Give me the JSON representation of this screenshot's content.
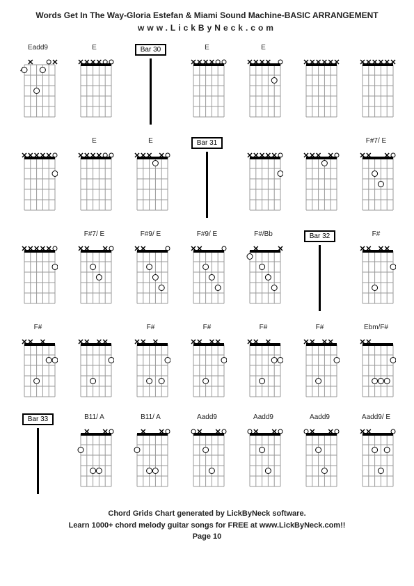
{
  "title": "Words Get In The Way-Gloria Estefan & Miami Sound Machine-BASIC ARRANGEMENT",
  "subtitle": "www.LickByNeck.com",
  "footer": {
    "line1": "Chord Grids Chart generated by LickByNeck software.",
    "line2": "Learn 1000+ chord melody guitar songs for FREE at www.LickByNeck.com!!",
    "line3": "Page 10"
  },
  "diagram": {
    "width": 56,
    "height": 95,
    "fret_count": 5,
    "string_count": 6,
    "grid_color": "#999999",
    "nut_color": "#000000",
    "finger_color": "#ffffff",
    "finger_stroke": "#000000",
    "mute_color": "#000000",
    "open_color": "#000000"
  },
  "cells": [
    {
      "type": "chord",
      "label": "Eadd9",
      "startFret": 4,
      "mutes": [
        0,
        4
      ],
      "opens": [
        1
      ],
      "fingers": [
        [
          2,
          1
        ],
        [
          3,
          3
        ],
        [
          5,
          1
        ]
      ]
    },
    {
      "type": "chord",
      "label": "E",
      "mutes": [
        2,
        3,
        4,
        5
      ],
      "opens": [
        0,
        1
      ],
      "fingers": []
    },
    {
      "type": "bar",
      "label": "Bar 30"
    },
    {
      "type": "chord",
      "label": "E",
      "mutes": [
        2,
        3,
        4,
        5
      ],
      "opens": [
        0,
        1
      ],
      "fingers": []
    },
    {
      "type": "chord",
      "label": "E",
      "mutes": [
        2,
        3,
        4,
        5
      ],
      "opens": [
        0
      ],
      "fingers": [
        [
          1,
          2
        ]
      ]
    },
    {
      "type": "chord",
      "label": "",
      "mutes": [
        0,
        1,
        2,
        3,
        4,
        5
      ],
      "opens": [],
      "fingers": []
    },
    {
      "type": "chord",
      "label": "",
      "mutes": [
        0,
        1,
        2,
        3,
        4,
        5
      ],
      "opens": [],
      "fingers": []
    },
    {
      "type": "chord",
      "label": "",
      "mutes": [
        1,
        2,
        3,
        4,
        5
      ],
      "opens": [
        0
      ],
      "fingers": [
        [
          0,
          2
        ]
      ]
    },
    {
      "type": "chord",
      "label": "E",
      "mutes": [
        2,
        3,
        4,
        5
      ],
      "opens": [
        0,
        1
      ],
      "fingers": []
    },
    {
      "type": "chord",
      "label": "E",
      "mutes": [
        1,
        3,
        4,
        5
      ],
      "opens": [
        0
      ],
      "fingers": [
        [
          2,
          1
        ]
      ]
    },
    {
      "type": "bar",
      "label": "Bar 31"
    },
    {
      "type": "chord",
      "label": "",
      "mutes": [
        1,
        2,
        3,
        4,
        5
      ],
      "opens": [
        0
      ],
      "fingers": [
        [
          0,
          2
        ]
      ]
    },
    {
      "type": "chord",
      "label": "",
      "mutes": [
        1,
        3,
        4,
        5
      ],
      "opens": [
        0
      ],
      "fingers": [
        [
          2,
          1
        ]
      ]
    },
    {
      "type": "chord",
      "label": "F#7/ E",
      "mutes": [
        1,
        4,
        5
      ],
      "opens": [
        0
      ],
      "fingers": [
        [
          2,
          3
        ],
        [
          3,
          2
        ]
      ]
    },
    {
      "type": "chord",
      "label": "",
      "mutes": [
        1,
        2,
        3,
        4,
        5
      ],
      "opens": [
        0
      ],
      "fingers": [
        [
          0,
          2
        ]
      ]
    },
    {
      "type": "chord",
      "label": "F#7/ E",
      "mutes": [
        1,
        4,
        5
      ],
      "opens": [
        0
      ],
      "fingers": [
        [
          2,
          3
        ],
        [
          3,
          2
        ]
      ]
    },
    {
      "type": "chord",
      "label": "F#9/ E",
      "mutes": [
        4,
        5
      ],
      "opens": [
        0
      ],
      "fingers": [
        [
          1,
          4
        ],
        [
          2,
          3
        ],
        [
          3,
          2
        ]
      ]
    },
    {
      "type": "chord",
      "label": "F#9/ E",
      "mutes": [
        4,
        5
      ],
      "opens": [
        0
      ],
      "fingers": [
        [
          1,
          4
        ],
        [
          2,
          3
        ],
        [
          3,
          2
        ]
      ]
    },
    {
      "type": "chord",
      "label": "F#/Bb",
      "mutes": [
        0,
        4
      ],
      "opens": [],
      "fingers": [
        [
          1,
          4
        ],
        [
          2,
          3
        ],
        [
          3,
          2
        ],
        [
          5,
          1
        ]
      ]
    },
    {
      "type": "bar",
      "label": "Bar 32"
    },
    {
      "type": "chord",
      "label": "F#",
      "mutes": [
        1,
        2,
        4,
        5
      ],
      "opens": [],
      "fingers": [
        [
          0,
          2
        ],
        [
          3,
          4
        ]
      ]
    },
    {
      "type": "chord",
      "label": "F#",
      "mutes": [
        2,
        4,
        5
      ],
      "opens": [],
      "fingers": [
        [
          0,
          2
        ],
        [
          1,
          2
        ],
        [
          3,
          4
        ]
      ]
    },
    {
      "type": "chord",
      "label": "",
      "mutes": [
        1,
        2,
        4,
        5
      ],
      "opens": [],
      "fingers": [
        [
          0,
          2
        ],
        [
          3,
          4
        ]
      ]
    },
    {
      "type": "chord",
      "label": "F#",
      "mutes": [
        2,
        4,
        5
      ],
      "opens": [],
      "fingers": [
        [
          0,
          2
        ],
        [
          1,
          4
        ],
        [
          3,
          4
        ]
      ]
    },
    {
      "type": "chord",
      "label": "F#",
      "mutes": [
        1,
        2,
        4,
        5
      ],
      "opens": [],
      "fingers": [
        [
          0,
          2
        ],
        [
          3,
          4
        ]
      ]
    },
    {
      "type": "chord",
      "label": "F#",
      "mutes": [
        2,
        4,
        5
      ],
      "opens": [],
      "fingers": [
        [
          0,
          2
        ],
        [
          1,
          2
        ],
        [
          3,
          4
        ]
      ]
    },
    {
      "type": "chord",
      "label": "F#",
      "mutes": [
        1,
        2,
        4,
        5
      ],
      "opens": [],
      "fingers": [
        [
          0,
          2
        ],
        [
          3,
          4
        ]
      ]
    },
    {
      "type": "chord",
      "label": "Ebm/F#",
      "mutes": [
        4,
        5
      ],
      "opens": [],
      "fingers": [
        [
          0,
          2
        ],
        [
          1,
          4
        ],
        [
          2,
          4
        ],
        [
          3,
          4
        ]
      ]
    },
    {
      "type": "bar",
      "label": "Bar 33"
    },
    {
      "type": "chord",
      "label": "B11/ A",
      "mutes": [
        1,
        4
      ],
      "opens": [
        0
      ],
      "fingers": [
        [
          2,
          4
        ],
        [
          3,
          4
        ],
        [
          5,
          2
        ]
      ]
    },
    {
      "type": "chord",
      "label": "B11/ A",
      "mutes": [
        1,
        4
      ],
      "opens": [
        0
      ],
      "fingers": [
        [
          2,
          4
        ],
        [
          3,
          4
        ],
        [
          5,
          2
        ]
      ]
    },
    {
      "type": "chord",
      "label": "Aadd9",
      "mutes": [
        1,
        4
      ],
      "opens": [
        0,
        5
      ],
      "fingers": [
        [
          2,
          4
        ],
        [
          3,
          2
        ]
      ]
    },
    {
      "type": "chord",
      "label": "Aadd9",
      "mutes": [
        1,
        4
      ],
      "opens": [
        0,
        5
      ],
      "fingers": [
        [
          2,
          4
        ],
        [
          3,
          2
        ]
      ]
    },
    {
      "type": "chord",
      "label": "Aadd9",
      "mutes": [
        1,
        4
      ],
      "opens": [
        0,
        5
      ],
      "fingers": [
        [
          2,
          4
        ],
        [
          3,
          2
        ]
      ]
    },
    {
      "type": "chord",
      "label": "Aadd9/ E",
      "mutes": [
        4,
        5
      ],
      "opens": [
        0
      ],
      "fingers": [
        [
          1,
          2
        ],
        [
          2,
          4
        ],
        [
          3,
          2
        ]
      ]
    }
  ]
}
